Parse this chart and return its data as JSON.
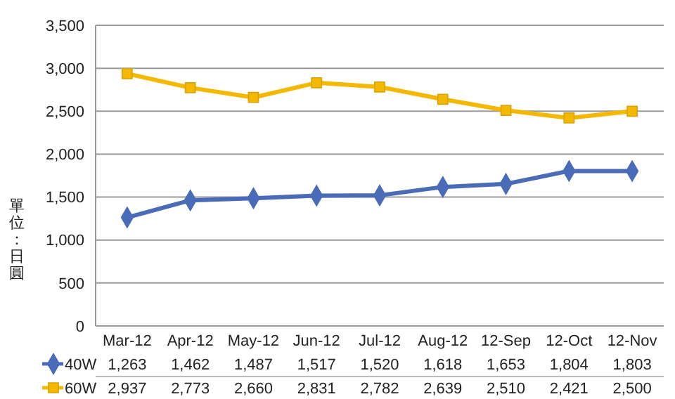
{
  "chart_data": {
    "type": "line",
    "ylabel": "單位：日圓",
    "categories": [
      "Mar-12",
      "Apr-12",
      "May-12",
      "Jun-12",
      "Jul-12",
      "Aug-12",
      "12-Sep",
      "12-Oct",
      "12-Nov"
    ],
    "series": [
      {
        "name": "40W",
        "color": "#4a6cb8",
        "marker": "diamond",
        "values": [
          1263,
          1462,
          1487,
          1517,
          1520,
          1618,
          1653,
          1804,
          1803
        ],
        "value_labels": [
          "1,263",
          "1,462",
          "1,487",
          "1,517",
          "1,520",
          "1,618",
          "1,653",
          "1,804",
          "1,803"
        ]
      },
      {
        "name": "60W",
        "color": "#f5b800",
        "marker": "square",
        "values": [
          2937,
          2773,
          2660,
          2831,
          2782,
          2639,
          2510,
          2421,
          2500
        ],
        "value_labels": [
          "2,937",
          "2,773",
          "2,660",
          "2,831",
          "2,782",
          "2,639",
          "2,510",
          "2,421",
          "2,500"
        ]
      }
    ],
    "ylim": [
      0,
      3500
    ],
    "yticks": [
      {
        "value": 0,
        "label": "0"
      },
      {
        "value": 500,
        "label": "500"
      },
      {
        "value": 1000,
        "label": "1,000"
      },
      {
        "value": 1500,
        "label": "1,500"
      },
      {
        "value": 2000,
        "label": "2,000"
      },
      {
        "value": 2500,
        "label": "2,500"
      },
      {
        "value": 3000,
        "label": "3,000"
      },
      {
        "value": 3500,
        "label": "3,500"
      }
    ],
    "grid": "y",
    "legend": "bottom left"
  }
}
